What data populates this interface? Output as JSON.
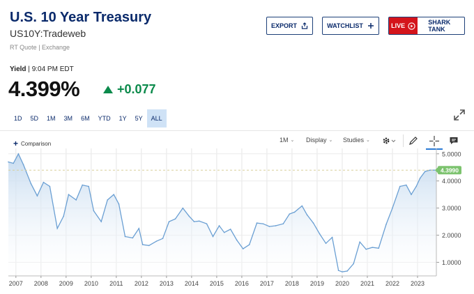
{
  "header": {
    "title": "U.S. 10 Year Treasury",
    "symbol": "US10Y:Tradeweb",
    "quote_meta": "RT Quote | Exchange"
  },
  "actions": {
    "export_label": "EXPORT",
    "watchlist_label": "WATCHLIST",
    "live_label": "LIVE",
    "sharktank_label": "SHARK TANK"
  },
  "quote": {
    "yield_label": "Yield",
    "time": "9:04 PM EDT",
    "price": "4.399%",
    "change": "+0.077"
  },
  "ranges": [
    {
      "label": "1D",
      "active": false
    },
    {
      "label": "5D",
      "active": false
    },
    {
      "label": "1M",
      "active": false
    },
    {
      "label": "3M",
      "active": false
    },
    {
      "label": "6M",
      "active": false
    },
    {
      "label": "YTD",
      "active": false
    },
    {
      "label": "1Y",
      "active": false
    },
    {
      "label": "5Y",
      "active": false
    },
    {
      "label": "ALL",
      "active": true
    }
  ],
  "toolbar": {
    "comparison_label": "Comparison",
    "interval_label": "1M",
    "display_label": "Display",
    "studies_label": "Studies"
  },
  "colors": {
    "line": "#6a9fd3",
    "area_top": "#c3d9ef",
    "up": "#0b8a4b",
    "current_badge": "#7cc36e",
    "brand": "#0a2a6b",
    "live": "#d4141b"
  },
  "chart_data": {
    "type": "area",
    "x_tick_labels": [
      "2007",
      "2008",
      "2009",
      "2010",
      "2011",
      "2012",
      "2013",
      "2014",
      "2015",
      "2016",
      "2017",
      "2018",
      "2019",
      "2020",
      "2021",
      "2022",
      "2023"
    ],
    "y_tick_labels": [
      "1.0000",
      "2.0000",
      "3.0000",
      "4.0000",
      "5.0000"
    ],
    "ylim": [
      0.5,
      5.2
    ],
    "xlim": [
      2006.7,
      2023.75
    ],
    "current_value_label": "4.3990",
    "current_value": 4.399,
    "reference_line": 4.399,
    "grid": true,
    "series": [
      {
        "x": [
          2006.7,
          2006.9,
          2007.1,
          2007.3,
          2007.6,
          2007.85,
          2008.1,
          2008.35,
          2008.65,
          2008.9,
          2009.1,
          2009.4,
          2009.65,
          2009.9,
          2010.1,
          2010.4,
          2010.65,
          2010.9,
          2011.1,
          2011.35,
          2011.65,
          2011.9,
          2012.05,
          2012.3,
          2012.6,
          2012.85,
          2013.1,
          2013.35,
          2013.65,
          2013.9,
          2014.1,
          2014.3,
          2014.6,
          2014.85,
          2015.1,
          2015.3,
          2015.55,
          2015.8,
          2016.05,
          2016.3,
          2016.6,
          2016.85,
          2017.1,
          2017.35,
          2017.65,
          2017.9,
          2018.1,
          2018.4,
          2018.6,
          2018.85,
          2019.1,
          2019.35,
          2019.6,
          2019.85,
          2020.0,
          2020.2,
          2020.45,
          2020.7,
          2020.95,
          2021.2,
          2021.45,
          2021.75,
          2022.0,
          2022.3,
          2022.55,
          2022.75,
          2022.95,
          2023.1,
          2023.3,
          2023.5,
          2023.75
        ],
        "values": [
          4.7,
          4.65,
          5.0,
          4.6,
          3.9,
          3.45,
          3.95,
          3.8,
          2.25,
          2.7,
          3.5,
          3.3,
          3.85,
          3.8,
          2.9,
          2.5,
          3.3,
          3.5,
          3.15,
          1.95,
          1.9,
          2.25,
          1.65,
          1.62,
          1.78,
          1.88,
          2.5,
          2.6,
          3.0,
          2.7,
          2.5,
          2.52,
          2.42,
          1.95,
          2.35,
          2.1,
          2.22,
          1.82,
          1.5,
          1.65,
          2.45,
          2.42,
          2.32,
          2.35,
          2.42,
          2.78,
          2.85,
          3.08,
          2.75,
          2.45,
          2.05,
          1.7,
          1.92,
          0.7,
          0.65,
          0.68,
          0.95,
          1.75,
          1.48,
          1.55,
          1.52,
          2.4,
          3.0,
          3.8,
          3.85,
          3.5,
          3.8,
          4.1,
          4.35,
          4.4,
          4.399
        ]
      }
    ]
  }
}
